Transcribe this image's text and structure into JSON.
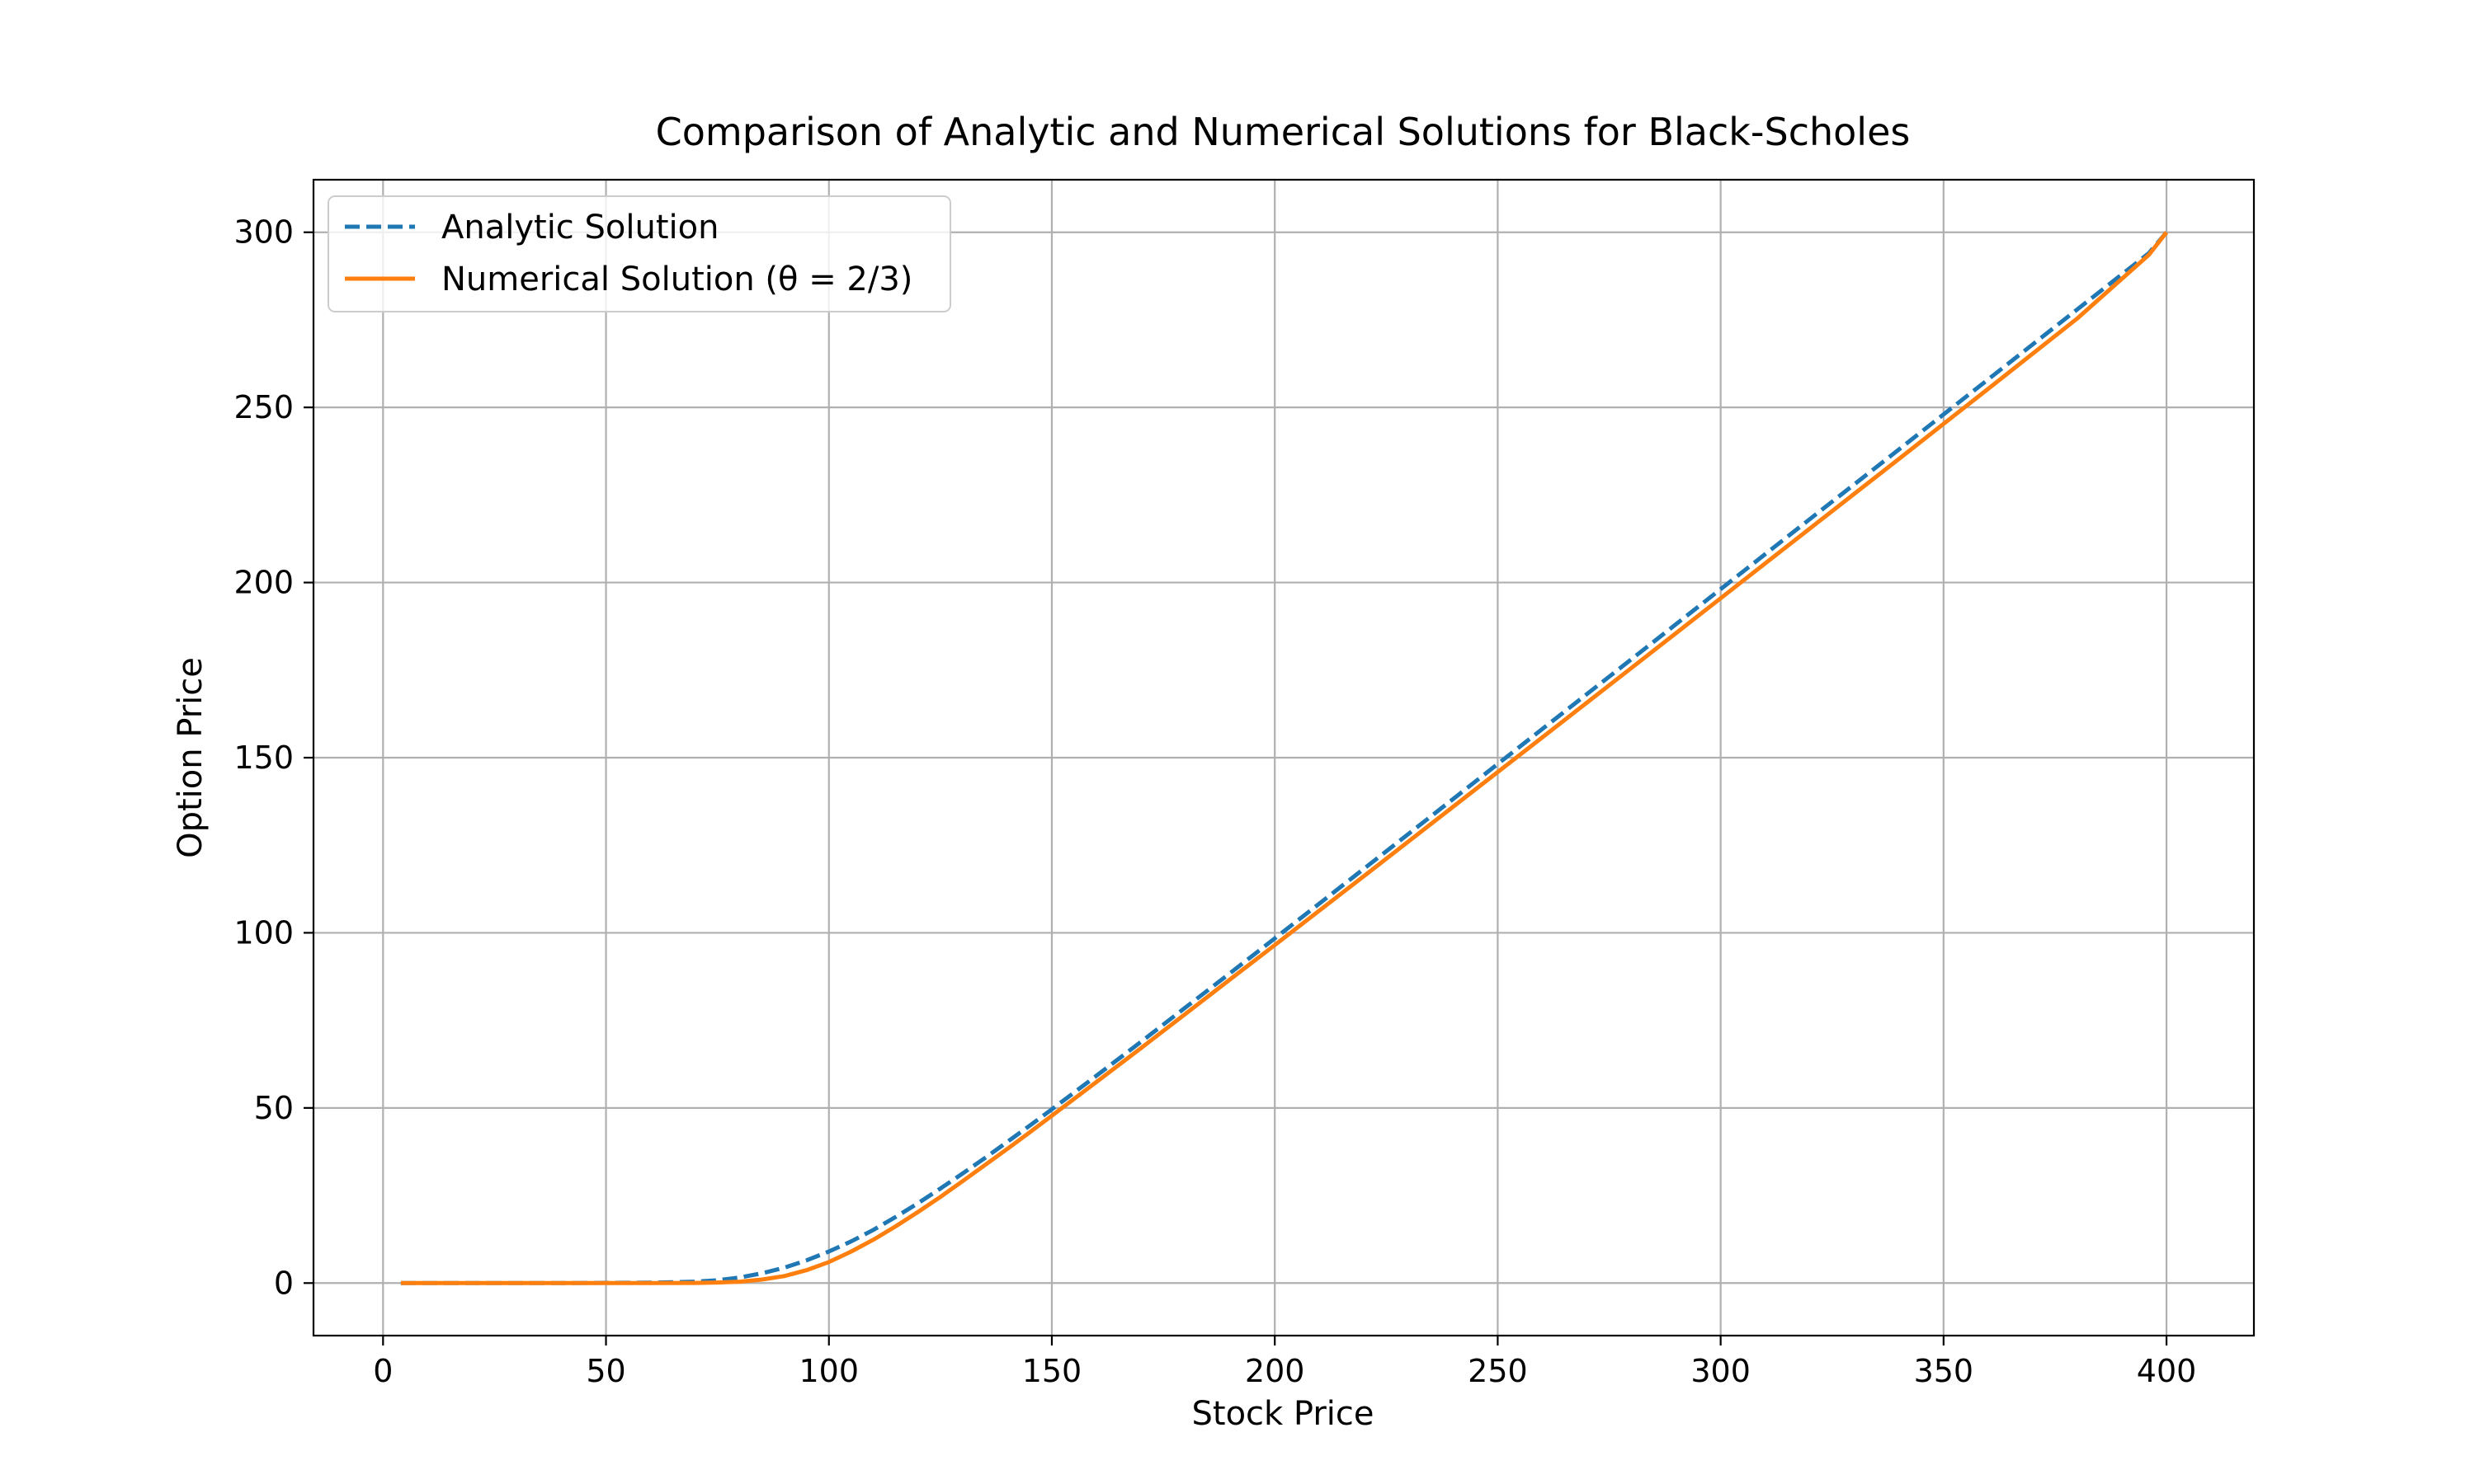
{
  "chart_data": {
    "type": "line",
    "title": "Comparison of Analytic and Numerical Solutions for Black-Scholes",
    "xlabel": "Stock Price",
    "ylabel": "Option Price",
    "xlim": [
      -15.6,
      419.6
    ],
    "ylim": [
      -15,
      315
    ],
    "x_ticks": [
      0,
      50,
      100,
      150,
      200,
      250,
      300,
      350,
      400
    ],
    "y_ticks": [
      0,
      50,
      100,
      150,
      200,
      250,
      300
    ],
    "grid": true,
    "legend_position": "top-left",
    "series": [
      {
        "name": "Analytic Solution",
        "color": "#1f77b4",
        "style": "dashed",
        "x": [
          4,
          20,
          40,
          60,
          70,
          75,
          80,
          85,
          90,
          95,
          100,
          105,
          110,
          115,
          120,
          125,
          130,
          135,
          140,
          145,
          150,
          160,
          170,
          180,
          190,
          200,
          220,
          240,
          260,
          280,
          300,
          320,
          340,
          360,
          380,
          396,
          400
        ],
        "y": [
          0,
          0,
          0,
          0.1,
          0.4,
          0.8,
          1.6,
          2.8,
          4.4,
          6.5,
          9.0,
          11.9,
          15.2,
          18.9,
          22.8,
          27.0,
          31.3,
          35.7,
          40.3,
          44.9,
          49.6,
          59.2,
          68.9,
          78.7,
          88.5,
          98.4,
          118.3,
          138.2,
          158.2,
          178.1,
          198.1,
          218.1,
          238.0,
          258.0,
          278.0,
          294.0,
          300
        ]
      },
      {
        "name": "Numerical Solution (θ = 2/3)",
        "color": "#ff7f0e",
        "style": "solid",
        "x": [
          4,
          20,
          40,
          60,
          70,
          75,
          80,
          85,
          90,
          95,
          100,
          105,
          110,
          115,
          120,
          125,
          130,
          135,
          140,
          145,
          150,
          160,
          170,
          180,
          190,
          200,
          220,
          240,
          260,
          280,
          300,
          320,
          340,
          360,
          380,
          396,
          400
        ],
        "y": [
          0,
          0,
          0,
          0,
          0.05,
          0.15,
          0.4,
          1.0,
          2.0,
          3.7,
          6.0,
          9.0,
          12.4,
          16.2,
          20.3,
          24.6,
          29.1,
          33.7,
          38.3,
          43.0,
          47.8,
          57.4,
          67.1,
          76.9,
          86.7,
          96.5,
          116.2,
          136.0,
          155.8,
          175.6,
          195.5,
          215.4,
          235.3,
          255.3,
          275.4,
          293.5,
          300
        ]
      }
    ]
  }
}
